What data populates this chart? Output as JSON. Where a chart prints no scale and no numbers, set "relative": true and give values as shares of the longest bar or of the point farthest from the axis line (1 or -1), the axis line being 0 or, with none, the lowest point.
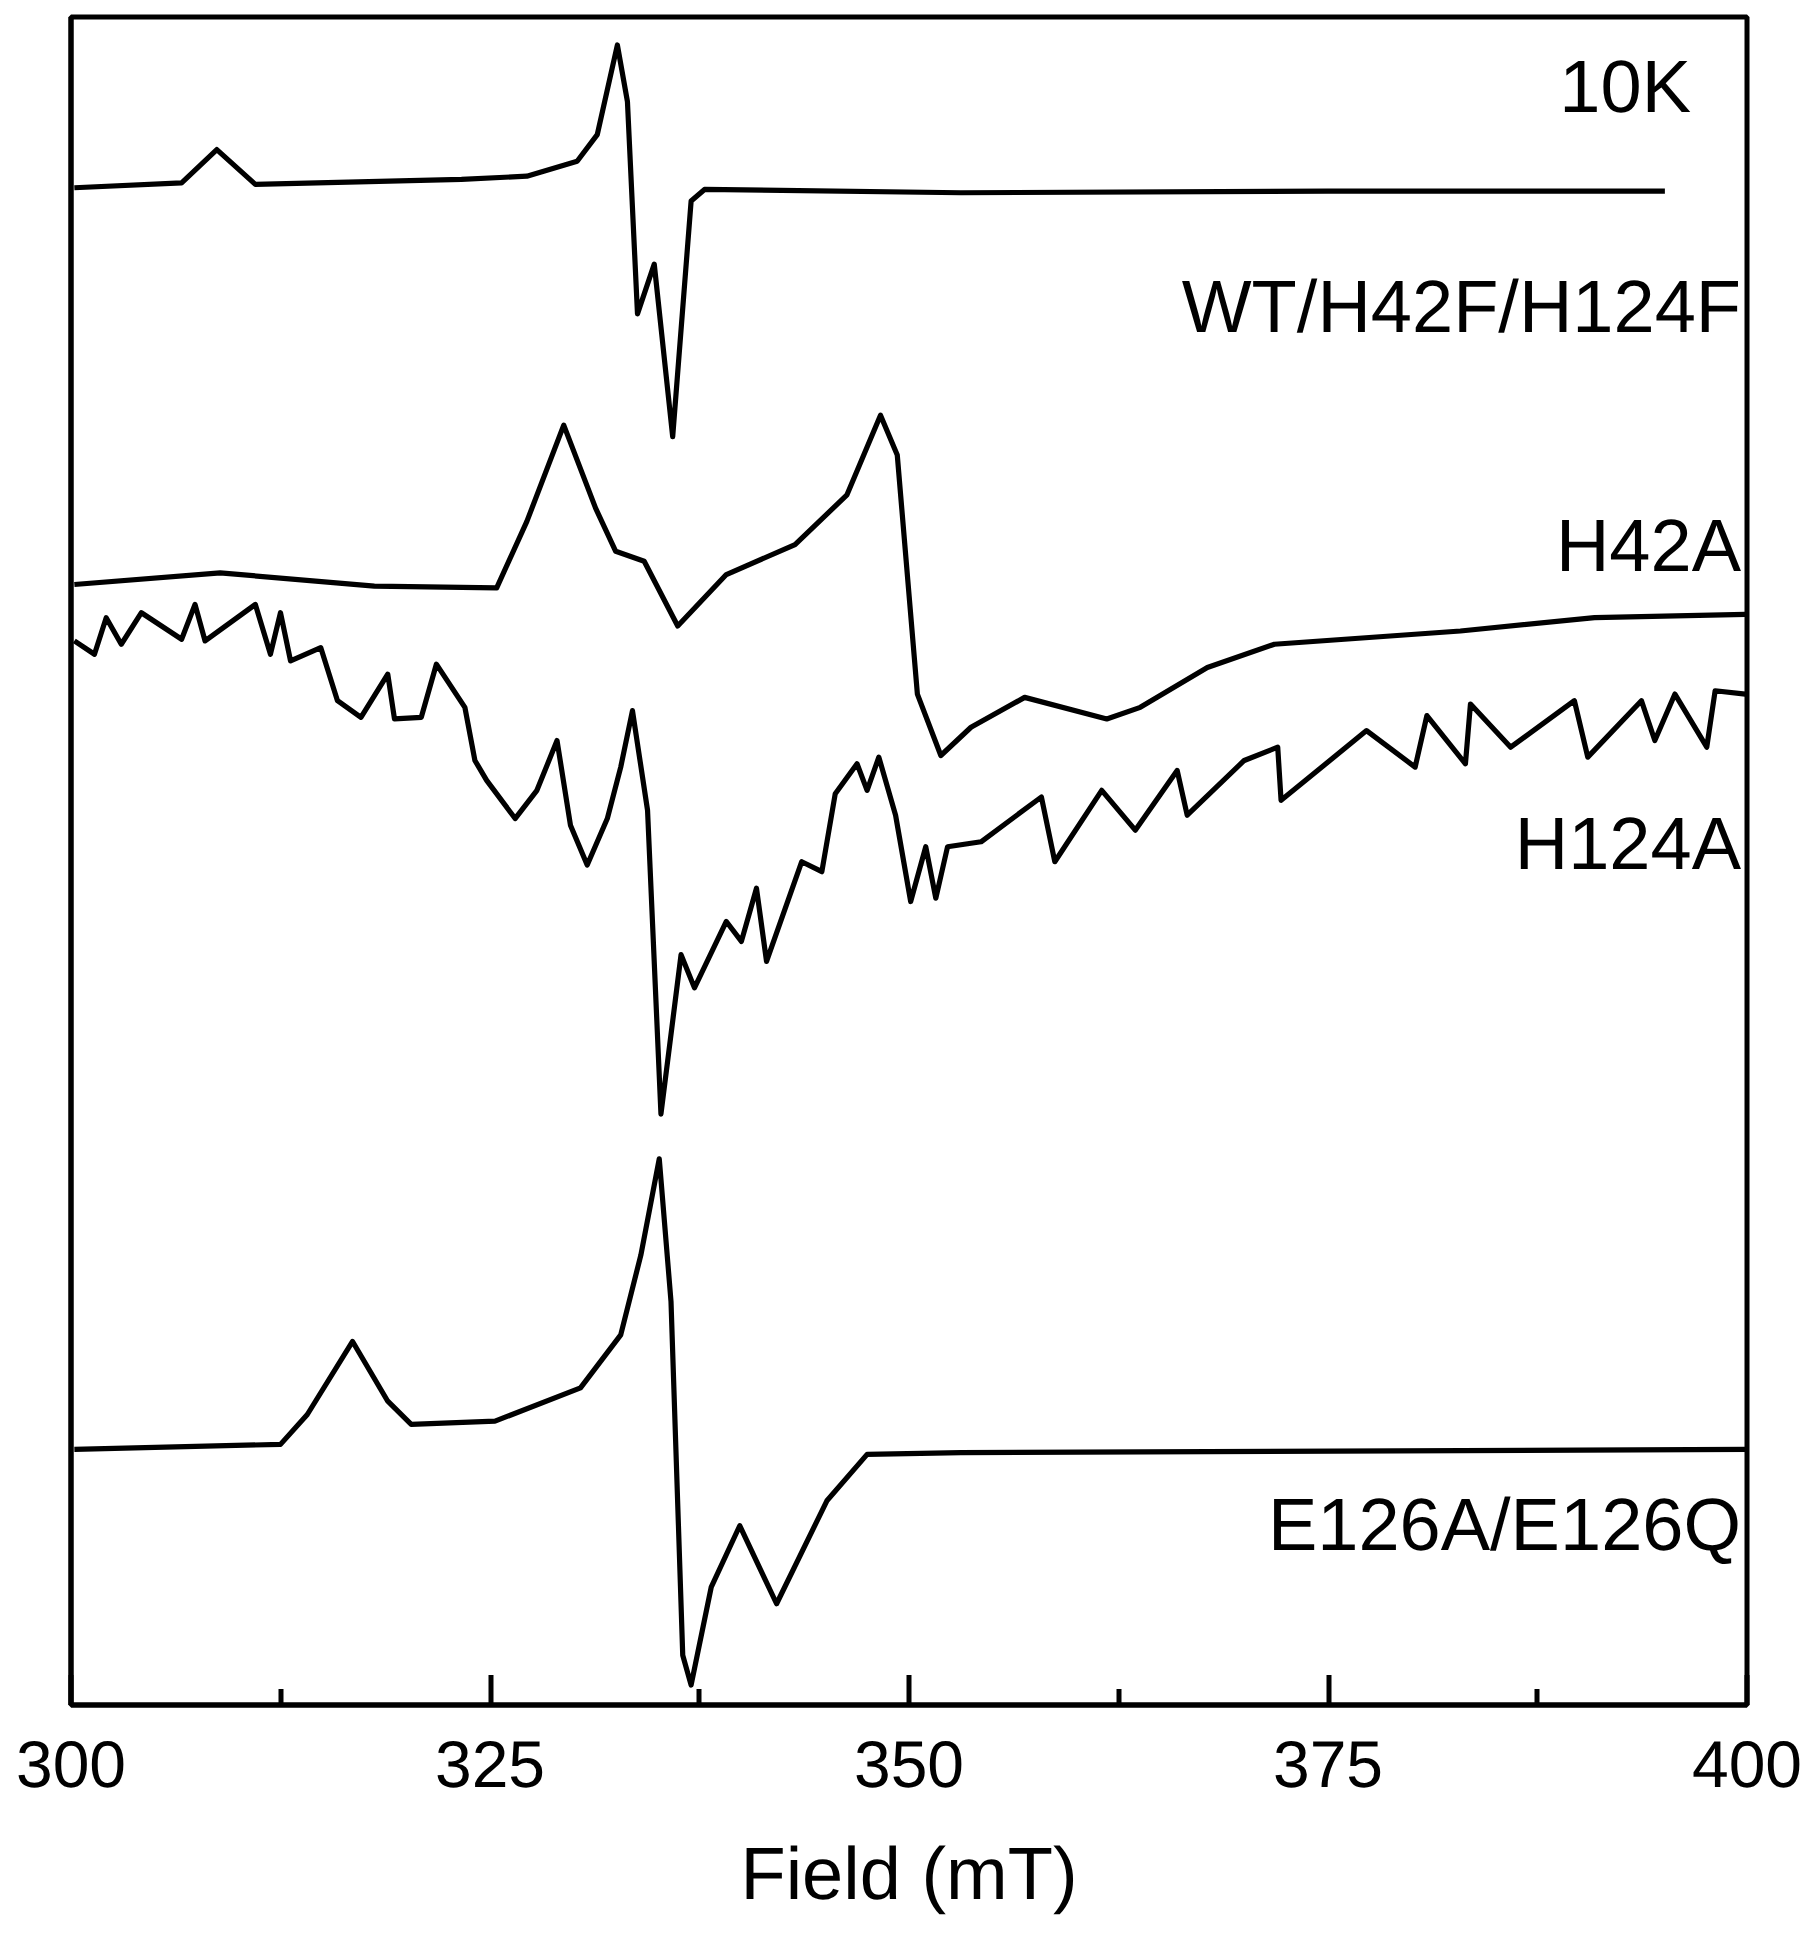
{
  "chart_data": {
    "type": "line",
    "relative": true,
    "xlabel": "Field (mT)",
    "xlim": [
      300,
      400
    ],
    "xticks": [
      300,
      {
        "value": 312.5,
        "label": null
      },
      325,
      {
        "value": 337.5,
        "label": null
      },
      350,
      {
        "value": 362.5,
        "label": null
      },
      375,
      {
        "value": 387.5,
        "label": null
      },
      400
    ],
    "tick_labels": "x",
    "grid": false,
    "marker": "none",
    "line_style": "solid",
    "annotations": [
      "10K"
    ],
    "series": [
      {
        "name": "WT/H42F/H124F",
        "color": "#000000",
        "x": [
          300.2,
          306.6,
          308.7,
          311.0,
          323.3,
          327.2,
          330.2,
          331.4,
          332.6,
          333.2,
          333.8,
          334.8,
          335.9,
          337.0,
          337.8,
          353.1,
          375.0,
          395.1
        ],
        "values": [
          0.914,
          0.917,
          0.937,
          0.916,
          0.919,
          0.921,
          0.93,
          0.946,
          1.0,
          0.966,
          0.838,
          0.868,
          0.764,
          0.906,
          0.913,
          0.911,
          0.912,
          0.912
        ]
      },
      {
        "name": "H42A",
        "color": "#000000",
        "x": [
          300.2,
          308.9,
          318.1,
          325.4,
          327.2,
          329.4,
          331.3,
          332.5,
          334.2,
          336.2,
          339.1,
          343.2,
          346.3,
          348.3,
          349.3,
          350.5,
          351.9,
          353.7,
          356.9,
          361.8,
          363.8,
          367.8,
          371.8,
          382.9,
          390.9,
          399.9
        ],
        "values": [
          0.675,
          0.682,
          0.674,
          0.673,
          0.713,
          0.771,
          0.721,
          0.695,
          0.689,
          0.65,
          0.681,
          0.699,
          0.729,
          0.777,
          0.753,
          0.609,
          0.572,
          0.589,
          0.607,
          0.594,
          0.601,
          0.625,
          0.639,
          0.647,
          0.655,
          0.657
        ]
      },
      {
        "name": "H124A",
        "color": "#000000",
        "x": [
          300.2,
          301.4,
          302.1,
          303.0,
          304.2,
          306.6,
          307.4,
          308.0,
          311.0,
          311.9,
          312.5,
          313.1,
          314.9,
          315.9,
          317.3,
          318.9,
          319.3,
          320.9,
          321.8,
          323.5,
          324.1,
          324.8,
          326.5,
          327.8,
          329.0,
          329.8,
          330.8,
          332.0,
          332.8,
          333.5,
          334.4,
          335.2,
          336.4,
          337.2,
          339.1,
          340.0,
          340.9,
          341.5,
          343.6,
          344.8,
          345.6,
          346.9,
          347.5,
          348.2,
          349.2,
          350.1,
          351.0,
          351.6,
          352.3,
          354.3,
          357.9,
          358.7,
          361.5,
          363.5,
          366.0,
          366.6,
          370.0,
          372.0,
          372.2,
          377.3,
          380.2,
          380.9,
          383.2,
          383.5,
          385.9,
          389.7,
          390.5,
          393.7,
          394.5,
          395.7,
          397.6,
          398.1,
          399.9
        ],
        "values": [
          0.641,
          0.633,
          0.655,
          0.639,
          0.658,
          0.642,
          0.663,
          0.641,
          0.663,
          0.633,
          0.658,
          0.629,
          0.637,
          0.605,
          0.595,
          0.621,
          0.594,
          0.595,
          0.627,
          0.601,
          0.569,
          0.557,
          0.534,
          0.551,
          0.581,
          0.53,
          0.506,
          0.534,
          0.565,
          0.599,
          0.539,
          0.356,
          0.452,
          0.432,
          0.472,
          0.46,
          0.492,
          0.448,
          0.508,
          0.502,
          0.549,
          0.567,
          0.551,
          0.571,
          0.536,
          0.484,
          0.517,
          0.486,
          0.517,
          0.52,
          0.547,
          0.508,
          0.551,
          0.527,
          0.563,
          0.536,
          0.569,
          0.577,
          0.545,
          0.587,
          0.565,
          0.596,
          0.567,
          0.603,
          0.577,
          0.605,
          0.571,
          0.605,
          0.581,
          0.609,
          0.577,
          0.611,
          0.609
        ]
      },
      {
        "name": "E126A/E126Q",
        "color": "#000000",
        "x": [
          300.2,
          312.5,
          314.1,
          316.8,
          318.9,
          320.3,
          325.3,
          330.4,
          332.8,
          334.0,
          335.1,
          335.8,
          336.5,
          337.0,
          338.2,
          339.9,
          342.1,
          345.1,
          347.5,
          353.1,
          400.0
        ],
        "values": [
          0.154,
          0.157,
          0.175,
          0.219,
          0.183,
          0.169,
          0.171,
          0.191,
          0.223,
          0.271,
          0.329,
          0.243,
          0.03,
          0.012,
          0.071,
          0.108,
          0.061,
          0.123,
          0.151,
          0.152,
          0.154
        ]
      }
    ]
  }
}
